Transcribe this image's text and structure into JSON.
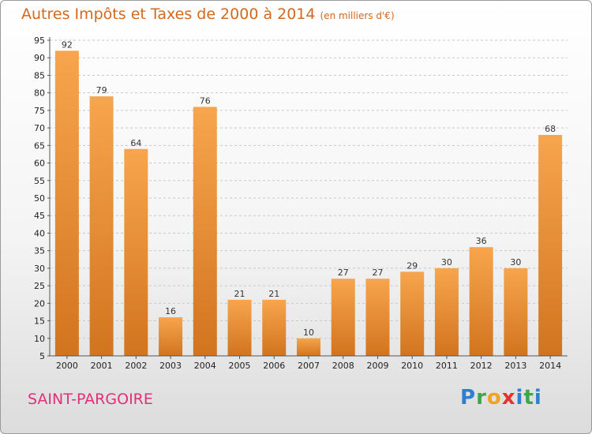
{
  "title": "Autres Impôts et Taxes de 2000 à 2014",
  "unit": "(en milliers d'€)",
  "commune": "SAINT-PARGOIRE",
  "brand": {
    "p": "P",
    "r": "r",
    "o": "o",
    "x": "x",
    "i": "i",
    "t": "t",
    "i2": "i"
  },
  "colors": {
    "bar_top": "#f7a54e",
    "bar_bottom": "#d2741f",
    "title": "#d2691e",
    "commune": "#e0307a"
  },
  "chart_data": {
    "type": "bar",
    "categories": [
      "2000",
      "2001",
      "2002",
      "2003",
      "2004",
      "2005",
      "2006",
      "2007",
      "2008",
      "2009",
      "2010",
      "2011",
      "2012",
      "2013",
      "2014"
    ],
    "values": [
      92,
      79,
      64,
      16,
      76,
      21,
      21,
      10,
      27,
      27,
      29,
      30,
      36,
      30,
      68
    ],
    "title": "Autres Impôts et Taxes de 2000 à 2014",
    "xlabel": "",
    "ylabel": "",
    "ylim": [
      5,
      95
    ],
    "yticks": [
      5,
      10,
      15,
      20,
      25,
      30,
      35,
      40,
      45,
      50,
      55,
      60,
      65,
      70,
      75,
      80,
      85,
      90,
      95
    ],
    "grid": true
  }
}
